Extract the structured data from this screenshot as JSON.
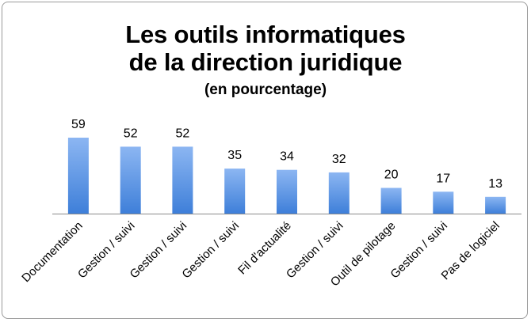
{
  "chart_data": {
    "type": "bar",
    "title_line1": "Les outils informatiques",
    "title_line2": "de la direction juridique",
    "subtitle": "(en pourcentage)",
    "categories": [
      "Documentation",
      "Gestion / suivi",
      "Gestion / suivi",
      "Gestion / suivi",
      "Fil d'actualité",
      "Gestion / suivi",
      "Outil de pilotage",
      "Gestion / suivi",
      "Pas de logiciel"
    ],
    "values": [
      59,
      52,
      52,
      35,
      34,
      32,
      20,
      17,
      13
    ],
    "ylim": [
      0,
      100
    ],
    "grid": false,
    "legend": "none",
    "bar_color_top": "#8cb6f2",
    "bar_color_bottom": "#3e7fd9"
  }
}
